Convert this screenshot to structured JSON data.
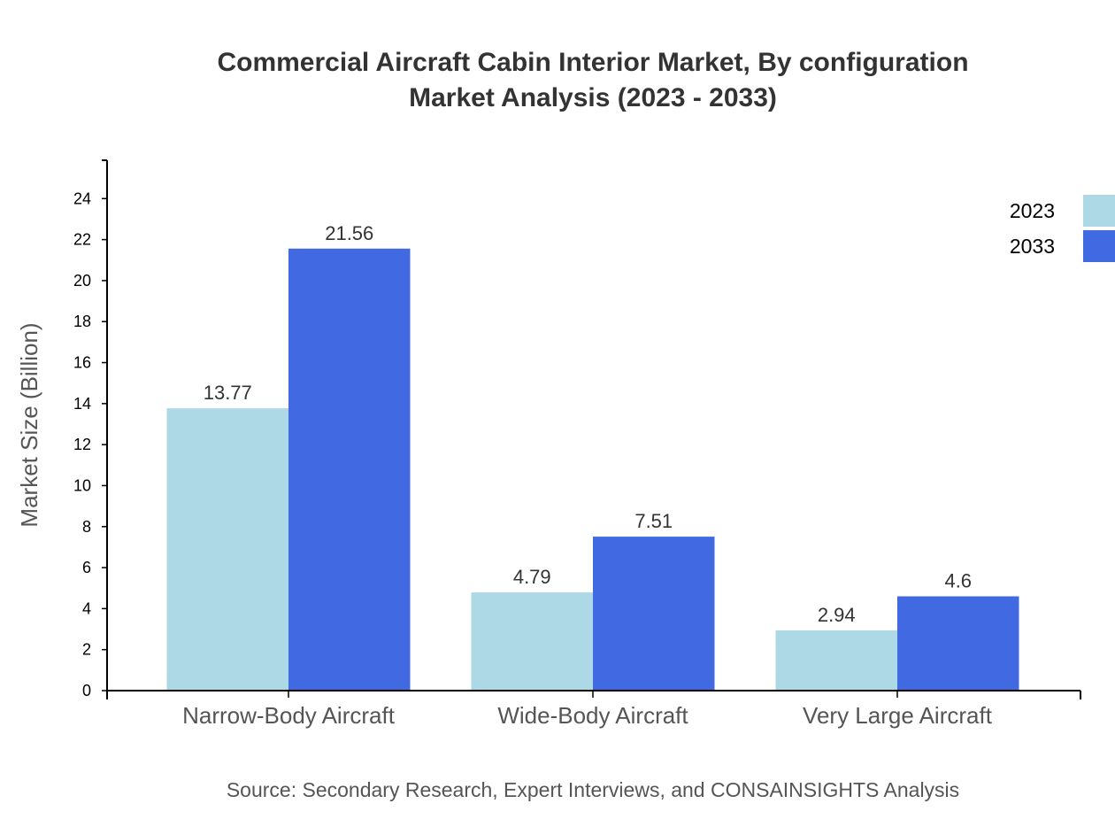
{
  "chart_data": {
    "type": "bar",
    "title": "Commercial Aircraft Cabin Interior Market, By configuration",
    "subtitle": "Market Analysis (2023 - 2033)",
    "xlabel": "",
    "ylabel": "Market Size (Billion)",
    "categories": [
      "Narrow-Body Aircraft",
      "Wide-Body Aircraft",
      "Very Large Aircraft"
    ],
    "series": [
      {
        "name": "2023",
        "values": [
          13.77,
          4.79,
          2.94
        ],
        "color": "#ADD8E6"
      },
      {
        "name": "2033",
        "values": [
          21.56,
          7.51,
          4.6
        ],
        "color": "#4169E1"
      }
    ],
    "ylim": [
      0,
      25.87
    ],
    "yticks": [
      0,
      2,
      4,
      6,
      8,
      10,
      12,
      14,
      16,
      18,
      20,
      22,
      24
    ],
    "grid": false,
    "legend": "top-right",
    "source": "Source: Secondary Research, Expert Interviews, and CONSAINSIGHTS Analysis"
  }
}
